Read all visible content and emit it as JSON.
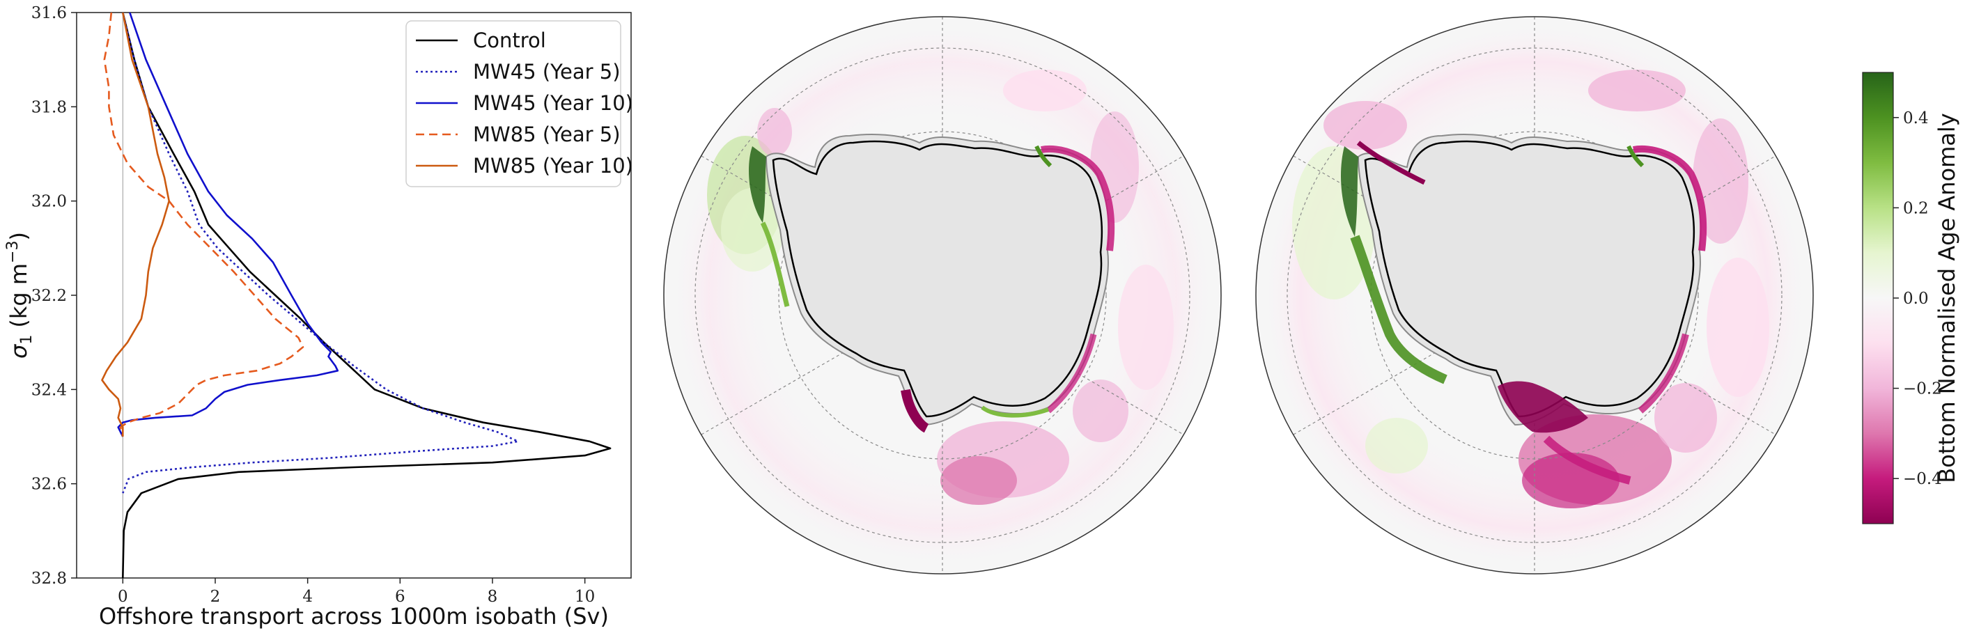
{
  "chart_data": [
    {
      "type": "line",
      "xlabel": "Offshore transport across 1000m isobath (Sv)",
      "ylabel_sigma": "σ",
      "ylabel_sub": "1",
      "ylabel_units": "(kg m",
      "ylabel_exp": "−3",
      "ylabel_close": ")",
      "xlim": [
        -1.0,
        11.0
      ],
      "ylim": [
        32.8,
        31.6
      ],
      "xticks": [
        0,
        2,
        4,
        6,
        8,
        10
      ],
      "xtick_labels": [
        "0",
        "2",
        "4",
        "6",
        "8",
        "10"
      ],
      "yticks": [
        31.6,
        31.8,
        32.0,
        32.2,
        32.4,
        32.6,
        32.8
      ],
      "ytick_labels": [
        "31.6",
        "31.8",
        "32.0",
        "32.2",
        "32.4",
        "32.6",
        "32.8"
      ],
      "legend_position": "top-right",
      "series": [
        {
          "name": "Control",
          "color": "#000000",
          "dash": "solid",
          "points": [
            [
              0.0,
              31.6
            ],
            [
              0.25,
              31.7
            ],
            [
              0.55,
              31.8
            ],
            [
              1.1,
              31.9
            ],
            [
              1.55,
              31.98
            ],
            [
              1.85,
              32.05
            ],
            [
              2.3,
              32.1
            ],
            [
              2.75,
              32.15
            ],
            [
              3.3,
              32.2
            ],
            [
              3.85,
              32.25
            ],
            [
              4.35,
              32.3
            ],
            [
              4.9,
              32.35
            ],
            [
              5.45,
              32.4
            ],
            [
              6.5,
              32.44
            ],
            [
              7.8,
              32.47
            ],
            [
              9.0,
              32.49
            ],
            [
              10.1,
              32.51
            ],
            [
              10.55,
              32.525
            ],
            [
              10.0,
              32.54
            ],
            [
              8.0,
              32.555
            ],
            [
              5.0,
              32.565
            ],
            [
              2.5,
              32.575
            ],
            [
              1.2,
              32.59
            ],
            [
              0.4,
              32.62
            ],
            [
              0.1,
              32.66
            ],
            [
              0.02,
              32.7
            ],
            [
              0.0,
              32.8
            ]
          ]
        },
        {
          "name": "MW45 (Year 5)",
          "color": "#2222bb",
          "dash": "dotted",
          "points": [
            [
              0.0,
              31.6
            ],
            [
              0.25,
              31.7
            ],
            [
              0.55,
              31.8
            ],
            [
              1.0,
              31.9
            ],
            [
              1.4,
              31.98
            ],
            [
              1.65,
              32.05
            ],
            [
              2.05,
              32.1
            ],
            [
              2.6,
              32.15
            ],
            [
              3.15,
              32.2
            ],
            [
              3.75,
              32.25
            ],
            [
              4.35,
              32.3
            ],
            [
              5.0,
              32.35
            ],
            [
              5.7,
              32.4
            ],
            [
              6.5,
              32.44
            ],
            [
              7.4,
              32.47
            ],
            [
              8.1,
              32.49
            ],
            [
              8.55,
              32.51
            ],
            [
              8.0,
              32.52
            ],
            [
              6.5,
              32.53
            ],
            [
              4.5,
              32.545
            ],
            [
              2.8,
              32.555
            ],
            [
              1.5,
              32.565
            ],
            [
              0.5,
              32.575
            ],
            [
              0.12,
              32.59
            ],
            [
              0.0,
              32.62
            ]
          ]
        },
        {
          "name": "MW45 (Year 10)",
          "color": "#1010cc",
          "dash": "solid",
          "points": [
            [
              0.15,
              31.6
            ],
            [
              0.5,
              31.7
            ],
            [
              0.95,
              31.8
            ],
            [
              1.4,
              31.9
            ],
            [
              1.85,
              31.98
            ],
            [
              2.25,
              32.03
            ],
            [
              2.8,
              32.08
            ],
            [
              3.25,
              32.13
            ],
            [
              3.65,
              32.2
            ],
            [
              4.0,
              32.26
            ],
            [
              4.3,
              32.3
            ],
            [
              4.5,
              32.32
            ],
            [
              4.45,
              32.33
            ],
            [
              4.6,
              32.35
            ],
            [
              4.65,
              32.36
            ],
            [
              4.2,
              32.37
            ],
            [
              3.4,
              32.38
            ],
            [
              2.7,
              32.39
            ],
            [
              2.2,
              32.405
            ],
            [
              2.0,
              32.42
            ],
            [
              1.8,
              32.44
            ],
            [
              1.5,
              32.455
            ],
            [
              0.7,
              32.46
            ],
            [
              0.2,
              32.465
            ],
            [
              0.0,
              32.47
            ],
            [
              -0.1,
              32.48
            ],
            [
              0.0,
              32.5
            ]
          ]
        },
        {
          "name": "MW85 (Year 5)",
          "color": "#e55a1e",
          "dash": "dashed",
          "points": [
            [
              -0.25,
              31.6
            ],
            [
              -0.3,
              31.65
            ],
            [
              -0.4,
              31.7
            ],
            [
              -0.3,
              31.76
            ],
            [
              -0.3,
              31.8
            ],
            [
              -0.2,
              31.86
            ],
            [
              0.1,
              31.92
            ],
            [
              0.55,
              31.97
            ],
            [
              1.0,
              32.0
            ],
            [
              1.4,
              32.05
            ],
            [
              1.9,
              32.1
            ],
            [
              2.4,
              32.15
            ],
            [
              2.85,
              32.2
            ],
            [
              3.3,
              32.25
            ],
            [
              3.8,
              32.29
            ],
            [
              3.9,
              32.31
            ],
            [
              3.65,
              32.33
            ],
            [
              3.4,
              32.345
            ],
            [
              2.9,
              32.36
            ],
            [
              2.2,
              32.37
            ],
            [
              1.8,
              32.38
            ],
            [
              1.6,
              32.39
            ],
            [
              1.4,
              32.41
            ],
            [
              1.2,
              32.43
            ],
            [
              0.8,
              32.45
            ],
            [
              0.4,
              32.46
            ],
            [
              0.1,
              32.47
            ],
            [
              -0.05,
              32.48
            ],
            [
              0.0,
              32.5
            ]
          ]
        },
        {
          "name": "MW85 (Year 10)",
          "color": "#cc5a10",
          "dash": "solid",
          "points": [
            [
              0.0,
              31.6
            ],
            [
              0.2,
              31.7
            ],
            [
              0.55,
              31.8
            ],
            [
              0.75,
              31.9
            ],
            [
              0.9,
              31.95
            ],
            [
              1.0,
              32.0
            ],
            [
              0.85,
              32.05
            ],
            [
              0.65,
              32.1
            ],
            [
              0.55,
              32.15
            ],
            [
              0.5,
              32.2
            ],
            [
              0.4,
              32.25
            ],
            [
              0.1,
              32.3
            ],
            [
              -0.15,
              32.33
            ],
            [
              -0.35,
              32.36
            ],
            [
              -0.45,
              32.38
            ],
            [
              -0.3,
              32.4
            ],
            [
              -0.1,
              32.42
            ],
            [
              -0.05,
              32.44
            ],
            [
              -0.1,
              32.46
            ],
            [
              0.0,
              32.48
            ],
            [
              0.0,
              32.5
            ]
          ]
        }
      ]
    },
    {
      "type": "heatmap",
      "colorbar_label": "Bottom Normalised Age Anomaly",
      "clim": [
        -0.5,
        0.5
      ],
      "colorbar_ticks": [
        0.4,
        0.2,
        0.0,
        -0.2,
        -0.4
      ],
      "colorbar_tick_labels": [
        "0.4",
        "0.2",
        "0.0",
        "−0.2",
        "−0.4"
      ],
      "colormap": "PiYG",
      "colormap_stops": [
        "#8e0152",
        "#c51b7d",
        "#de77ae",
        "#f1b6da",
        "#fde0ef",
        "#f7f7f7",
        "#e6f5d0",
        "#b8e186",
        "#7fbc41",
        "#4d9221",
        "#276419"
      ],
      "maps": [
        {
          "panel": "map-1"
        },
        {
          "panel": "map-2"
        }
      ]
    }
  ]
}
